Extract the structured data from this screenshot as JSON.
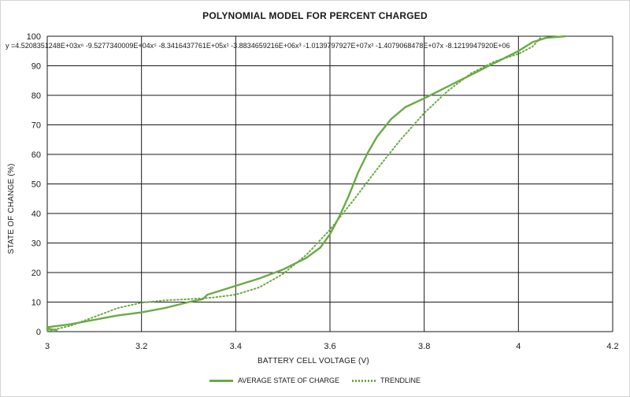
{
  "chart_data": {
    "type": "line",
    "title": "POLYNOMIAL MODEL FOR PERCENT CHARGED",
    "xlabel": "BATTERY CELL VOLTAGE (V)",
    "ylabel": "STATE OF CHANGE (%)",
    "xlim": [
      3,
      4.2
    ],
    "ylim": [
      0,
      100
    ],
    "x_ticks": [
      "3",
      "3.2",
      "3.4",
      "3.6",
      "3.8",
      "4",
      "4.2"
    ],
    "y_ticks": [
      "0",
      "10",
      "20",
      "30",
      "40",
      "50",
      "60",
      "70",
      "80",
      "90",
      "100"
    ],
    "grid": true,
    "legend_position": "bottom",
    "line_color": "#6aaa44",
    "annotation": "y =4.5208351248E+03x⁶ -9.5277340009E+04x⁵ -8.3416437761E+05x¹ -3.8834659216E+06x³ -1.0139797927E+07x² -1.4079068478E+07x -8.1219947920E+06",
    "series": [
      {
        "name": "AVERAGE STATE OF CHARGE",
        "style": "solid",
        "points": [
          [
            3.02,
            0.5
          ],
          [
            3.0,
            1.0
          ],
          [
            3.0,
            1.5
          ],
          [
            3.05,
            2.5
          ],
          [
            3.1,
            4.0
          ],
          [
            3.15,
            5.5
          ],
          [
            3.2,
            6.5
          ],
          [
            3.25,
            8.0
          ],
          [
            3.3,
            10.0
          ],
          [
            3.33,
            11.0
          ],
          [
            3.34,
            12.5
          ],
          [
            3.36,
            13.5
          ],
          [
            3.4,
            15.5
          ],
          [
            3.45,
            18.0
          ],
          [
            3.5,
            21.0
          ],
          [
            3.55,
            25.0
          ],
          [
            3.58,
            28.5
          ],
          [
            3.6,
            33.0
          ],
          [
            3.62,
            39.0
          ],
          [
            3.64,
            46.0
          ],
          [
            3.66,
            54.0
          ],
          [
            3.68,
            60.5
          ],
          [
            3.7,
            66.0
          ],
          [
            3.73,
            72.0
          ],
          [
            3.76,
            76.0
          ],
          [
            3.8,
            79.0
          ],
          [
            3.85,
            83.0
          ],
          [
            3.9,
            87.0
          ],
          [
            3.95,
            91.0
          ],
          [
            4.0,
            95.0
          ],
          [
            4.03,
            98.0
          ],
          [
            4.06,
            99.5
          ],
          [
            4.1,
            100.0
          ]
        ]
      },
      {
        "name": "TRENDLINE",
        "style": "dotted",
        "points": [
          [
            3.0,
            0.2
          ],
          [
            3.05,
            2.0
          ],
          [
            3.1,
            5.0
          ],
          [
            3.15,
            8.0
          ],
          [
            3.2,
            9.8
          ],
          [
            3.25,
            10.6
          ],
          [
            3.3,
            11.0
          ],
          [
            3.35,
            11.5
          ],
          [
            3.4,
            12.5
          ],
          [
            3.45,
            15.0
          ],
          [
            3.5,
            19.5
          ],
          [
            3.55,
            26.0
          ],
          [
            3.6,
            34.5
          ],
          [
            3.65,
            44.5
          ],
          [
            3.7,
            55.0
          ],
          [
            3.75,
            65.0
          ],
          [
            3.8,
            74.0
          ],
          [
            3.85,
            81.5
          ],
          [
            3.9,
            87.5
          ],
          [
            3.95,
            91.5
          ],
          [
            4.0,
            94.0
          ],
          [
            4.03,
            96.5
          ],
          [
            4.05,
            100.0
          ]
        ]
      }
    ]
  }
}
